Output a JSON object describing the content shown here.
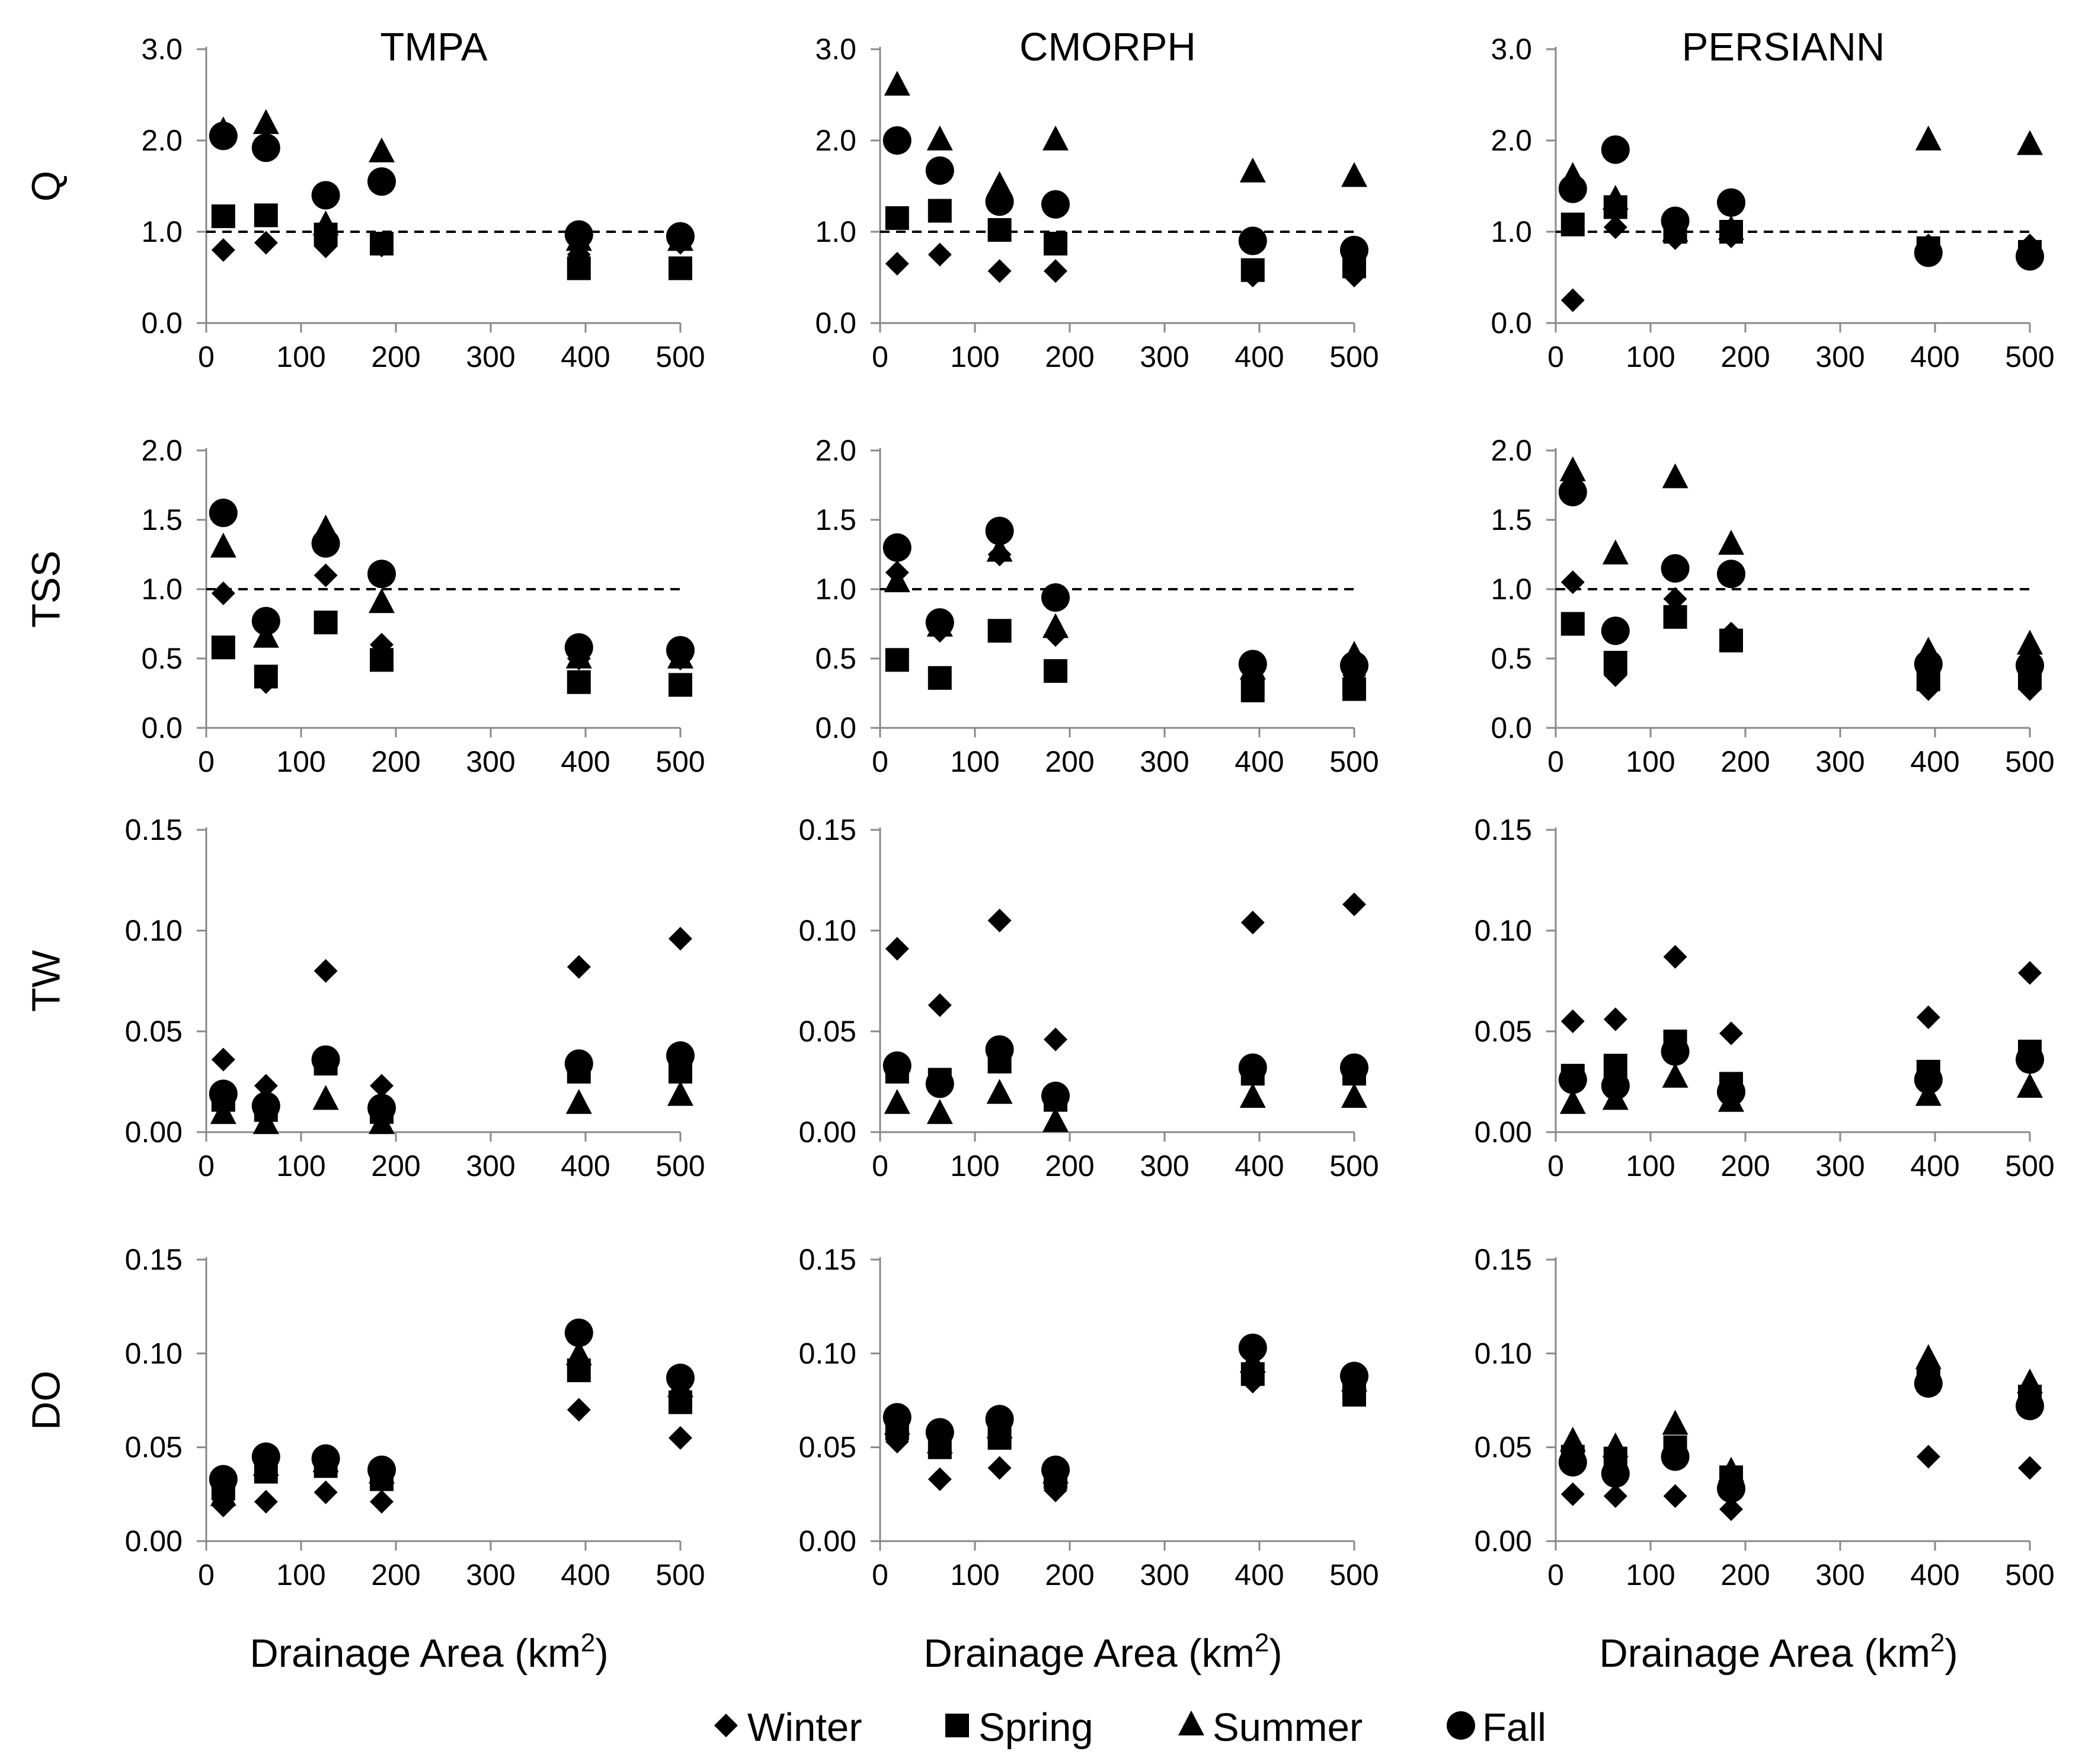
{
  "chart_data": {
    "type": "scatter",
    "figure": "Seasonal ratio metrics (Q, TSS, TW, DO) versus drainage area for three satellite precipitation products",
    "columns": [
      "TMPA",
      "CMORPH",
      "PERSIANN"
    ],
    "rows": [
      "Q",
      "TSS",
      "TW",
      "DO"
    ],
    "xlabel": "Drainage Area (km",
    "xlabel_sup": "2",
    "xlabel_close": ")",
    "x_ticks": [
      "0",
      "100",
      "200",
      "300",
      "400",
      "500"
    ],
    "xlim": [
      0,
      500
    ],
    "x": [
      18,
      63,
      126,
      185,
      393,
      500
    ],
    "legend": [
      {
        "name": "Winter",
        "marker": "diamond"
      },
      {
        "name": "Spring",
        "marker": "square"
      },
      {
        "name": "Summer",
        "marker": "triangle"
      },
      {
        "name": "Fall",
        "marker": "circle"
      }
    ],
    "marker_color": "#000000",
    "reference_line_color": "#000000",
    "axis_color": "#888888",
    "row_axes": {
      "Q": {
        "ylim": [
          0,
          3.0
        ],
        "y_ticks": [
          "0.0",
          "1.0",
          "2.0",
          "3.0"
        ],
        "ref_line": 1.0
      },
      "TSS": {
        "ylim": [
          0,
          2.0
        ],
        "y_ticks": [
          "0.0",
          "0.5",
          "1.0",
          "1.5",
          "2.0"
        ],
        "ref_line": 1.0
      },
      "TW": {
        "ylim": [
          0,
          0.15
        ],
        "y_ticks": [
          "0.00",
          "0.05",
          "0.10",
          "0.15"
        ],
        "ref_line": null
      },
      "DO": {
        "ylim": [
          0,
          0.15
        ],
        "y_ticks": [
          "0.00",
          "0.05",
          "0.10",
          "0.15"
        ],
        "ref_line": null
      }
    },
    "panels": [
      {
        "column": "TMPA",
        "row": "Q",
        "series": {
          "Winter": [
            0.8,
            0.88,
            0.84,
            0.85,
            0.75,
            0.88
          ],
          "Spring": [
            1.17,
            1.18,
            0.97,
            0.87,
            0.6,
            0.6
          ],
          "Summer": [
            2.1,
            2.18,
            1.07,
            1.87,
            0.9,
            0.9
          ],
          "Fall": [
            2.05,
            1.92,
            1.4,
            1.55,
            0.97,
            0.95
          ]
        }
      },
      {
        "column": "CMORPH",
        "row": "Q",
        "series": {
          "Winter": [
            0.65,
            0.75,
            0.57,
            0.57,
            0.52,
            0.52
          ],
          "Spring": [
            1.15,
            1.23,
            1.02,
            0.87,
            0.58,
            0.62
          ],
          "Summer": [
            2.6,
            2.0,
            1.5,
            2.0,
            1.65,
            1.6
          ],
          "Fall": [
            2.0,
            1.67,
            1.33,
            1.3,
            0.9,
            0.8
          ]
        }
      },
      {
        "column": "PERSIANN",
        "row": "Q",
        "series": {
          "Winter": [
            0.25,
            1.05,
            0.93,
            0.95,
            0.85,
            0.85
          ],
          "Spring": [
            1.08,
            1.27,
            1.0,
            1.0,
            0.82,
            0.78
          ],
          "Summer": [
            1.6,
            1.35,
            1.0,
            1.02,
            2.0,
            1.95
          ],
          "Fall": [
            1.47,
            1.9,
            1.12,
            1.32,
            0.77,
            0.73
          ]
        }
      },
      {
        "column": "TMPA",
        "row": "TSS",
        "series": {
          "Winter": [
            0.97,
            0.33,
            1.1,
            0.6,
            0.5,
            0.5
          ],
          "Spring": [
            0.58,
            0.37,
            0.76,
            0.49,
            0.33,
            0.31
          ],
          "Summer": [
            1.3,
            0.65,
            1.43,
            0.9,
            0.5,
            0.5
          ],
          "Fall": [
            1.55,
            0.77,
            1.33,
            1.11,
            0.58,
            0.56
          ]
        }
      },
      {
        "column": "CMORPH",
        "row": "TSS",
        "series": {
          "Winter": [
            1.12,
            0.7,
            1.25,
            0.67,
            0.35,
            0.38
          ],
          "Spring": [
            0.49,
            0.36,
            0.7,
            0.41,
            0.27,
            0.28
          ],
          "Summer": [
            1.05,
            0.73,
            1.27,
            0.72,
            0.42,
            0.52
          ],
          "Fall": [
            1.3,
            0.76,
            1.42,
            0.94,
            0.46,
            0.45
          ]
        }
      },
      {
        "column": "PERSIANN",
        "row": "TSS",
        "series": {
          "Winter": [
            1.05,
            0.38,
            0.93,
            0.68,
            0.28,
            0.28
          ],
          "Spring": [
            0.75,
            0.47,
            0.8,
            0.63,
            0.35,
            0.36
          ],
          "Summer": [
            1.85,
            1.25,
            1.8,
            1.32,
            0.55,
            0.6
          ],
          "Fall": [
            1.7,
            0.7,
            1.15,
            1.11,
            0.46,
            0.45
          ]
        }
      },
      {
        "column": "TMPA",
        "row": "TW",
        "series": {
          "Winter": [
            0.036,
            0.023,
            0.08,
            0.023,
            0.082,
            0.096
          ],
          "Spring": [
            0.016,
            0.011,
            0.034,
            0.01,
            0.03,
            0.03
          ],
          "Summer": [
            0.009,
            0.004,
            0.016,
            0.004,
            0.014,
            0.018
          ],
          "Fall": [
            0.019,
            0.013,
            0.036,
            0.012,
            0.034,
            0.038
          ]
        }
      },
      {
        "column": "CMORPH",
        "row": "TW",
        "series": {
          "Winter": [
            0.091,
            0.063,
            0.105,
            0.046,
            0.104,
            0.113
          ],
          "Spring": [
            0.03,
            0.026,
            0.035,
            0.016,
            0.029,
            0.029
          ],
          "Summer": [
            0.014,
            0.009,
            0.019,
            0.005,
            0.017,
            0.017
          ],
          "Fall": [
            0.033,
            0.024,
            0.041,
            0.018,
            0.032,
            0.032
          ]
        }
      },
      {
        "column": "PERSIANN",
        "row": "TW",
        "series": {
          "Winter": [
            0.055,
            0.056,
            0.087,
            0.049,
            0.057,
            0.079
          ],
          "Spring": [
            0.028,
            0.033,
            0.045,
            0.024,
            0.03,
            0.04
          ],
          "Summer": [
            0.014,
            0.016,
            0.027,
            0.015,
            0.018,
            0.022
          ],
          "Fall": [
            0.026,
            0.023,
            0.04,
            0.02,
            0.026,
            0.036
          ]
        }
      },
      {
        "column": "TMPA",
        "row": "DO",
        "series": {
          "Winter": [
            0.019,
            0.021,
            0.026,
            0.021,
            0.07,
            0.055
          ],
          "Spring": [
            0.028,
            0.037,
            0.04,
            0.033,
            0.091,
            0.074
          ],
          "Summer": [
            0.024,
            0.04,
            0.042,
            0.036,
            0.099,
            0.082
          ],
          "Fall": [
            0.033,
            0.045,
            0.044,
            0.038,
            0.111,
            0.087
          ]
        }
      },
      {
        "column": "CMORPH",
        "row": "DO",
        "series": {
          "Winter": [
            0.053,
            0.033,
            0.039,
            0.027,
            0.085,
            0.078
          ],
          "Spring": [
            0.06,
            0.05,
            0.055,
            0.034,
            0.089,
            0.078
          ],
          "Summer": [
            0.062,
            0.052,
            0.06,
            0.036,
            0.095,
            0.085
          ],
          "Fall": [
            0.066,
            0.058,
            0.065,
            0.038,
            0.103,
            0.088
          ]
        }
      },
      {
        "column": "PERSIANN",
        "row": "DO",
        "series": {
          "Winter": [
            0.025,
            0.024,
            0.024,
            0.017,
            0.045,
            0.039
          ],
          "Spring": [
            0.045,
            0.044,
            0.05,
            0.034,
            0.086,
            0.077
          ],
          "Summer": [
            0.053,
            0.05,
            0.062,
            0.037,
            0.097,
            0.084
          ],
          "Fall": [
            0.042,
            0.036,
            0.045,
            0.028,
            0.084,
            0.072
          ]
        }
      }
    ]
  }
}
